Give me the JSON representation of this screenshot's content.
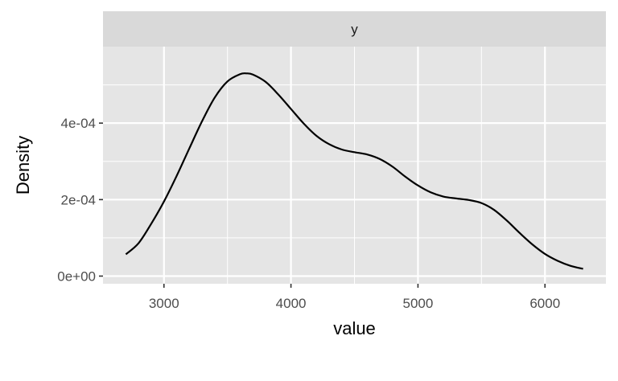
{
  "chart_data": {
    "type": "line",
    "facet": {
      "strip_label": "y"
    },
    "xlabel": "value",
    "ylabel": "Density",
    "xlim": [
      2520,
      6480
    ],
    "ylim": [
      -2e-05,
      0.0006
    ],
    "x_ticks": [
      3000,
      4000,
      5000,
      6000
    ],
    "x_tick_labels": [
      "3000",
      "4000",
      "5000",
      "6000"
    ],
    "x_minor_ticks": [
      3500,
      4500,
      5500
    ],
    "y_ticks": [
      0,
      0.0002,
      0.0004
    ],
    "y_tick_labels": [
      "0e+00",
      "2e-04",
      "4e-04"
    ],
    "y_minor_ticks": [
      0.0001,
      0.0003,
      0.0005
    ],
    "grid": true,
    "series": [
      {
        "x": [
          2700,
          2800,
          2900,
          3000,
          3100,
          3200,
          3300,
          3400,
          3500,
          3600,
          3650,
          3700,
          3800,
          3900,
          4000,
          4100,
          4200,
          4300,
          4400,
          4500,
          4600,
          4700,
          4800,
          4900,
          5000,
          5100,
          5200,
          5300,
          5400,
          5500,
          5600,
          5700,
          5800,
          5900,
          6000,
          6100,
          6200,
          6300
        ],
        "y": [
          5.7e-05,
          8.6e-05,
          0.000137,
          0.000195,
          0.000262,
          0.000334,
          0.000405,
          0.000467,
          0.000509,
          0.000528,
          0.00053,
          0.000527,
          0.000508,
          0.000475,
          0.000437,
          0.000399,
          0.000367,
          0.000345,
          0.000331,
          0.000324,
          0.000318,
          0.000306,
          0.000286,
          0.00026,
          0.000237,
          0.000219,
          0.000208,
          0.000203,
          0.000199,
          0.000191,
          0.000173,
          0.000145,
          0.000113,
          8.3e-05,
          5.8e-05,
          4e-05,
          2.7e-05,
          1.9e-05
        ]
      }
    ],
    "colors": {
      "panel_background": "#e5e5e5",
      "strip_background": "#d9d9d9",
      "grid": "#ffffff",
      "line": "#000000",
      "tick_text": "#4d4d4d"
    }
  }
}
